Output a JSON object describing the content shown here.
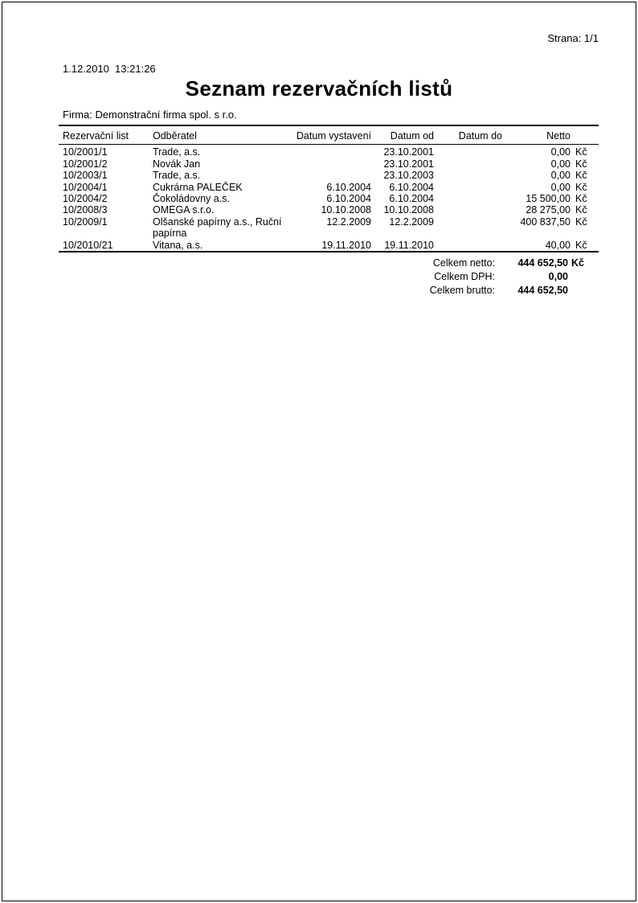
{
  "colors": {
    "text": "#000000",
    "background": "#ffffff",
    "rule": "#000000"
  },
  "header": {
    "printed_at": "1.12.2010  13:21:26",
    "company": "Firma: Demonstrační firma spol. s r.o.",
    "page_label": "Strana: 1/1",
    "title": "Seznam rezervačních listů"
  },
  "table": {
    "headers": {
      "id": "Rezervační list",
      "customer": "Odběratel",
      "issued": "Datum vystavení",
      "date_from": "Datum od",
      "date_to": "Datum do",
      "netto": "Netto"
    },
    "rows": [
      {
        "id": "10/2001/1",
        "customer": "Trade, a.s.",
        "issued": "",
        "date_from": "23.10.2001",
        "date_to": "",
        "netto": "0,00",
        "currency": "Kč"
      },
      {
        "id": "10/2001/2",
        "customer": "Novák Jan",
        "issued": "",
        "date_from": "23.10.2001",
        "date_to": "",
        "netto": "0,00",
        "currency": "Kč"
      },
      {
        "id": "10/2003/1",
        "customer": "Trade, a.s.",
        "issued": "",
        "date_from": "23.10.2003",
        "date_to": "",
        "netto": "0,00",
        "currency": "Kč"
      },
      {
        "id": "10/2004/1",
        "customer": "Cukrárna PALEČEK",
        "issued": "6.10.2004",
        "date_from": "6.10.2004",
        "date_to": "",
        "netto": "0,00",
        "currency": "Kč"
      },
      {
        "id": "10/2004/2",
        "customer": "Čokoládovny a.s.",
        "issued": "6.10.2004",
        "date_from": "6.10.2004",
        "date_to": "",
        "netto": "15 500,00",
        "currency": "Kč"
      },
      {
        "id": "10/2008/3",
        "customer": "OMEGA s.r.o.",
        "issued": "10.10.2008",
        "date_from": "10.10.2008",
        "date_to": "",
        "netto": "28 275,00",
        "currency": "Kč"
      },
      {
        "id": "10/2009/1",
        "customer": "Olšanské papírny a.s., Ruční papírna",
        "issued": "12.2.2009",
        "date_from": "12.2.2009",
        "date_to": "",
        "netto": "400 837,50",
        "currency": "Kč"
      },
      {
        "id": "10/2010/21",
        "customer": "Vitana, a.s.",
        "issued": "19.11.2010",
        "date_from": "19.11.2010",
        "date_to": "",
        "netto": "40,00",
        "currency": "Kč"
      }
    ]
  },
  "totals": [
    {
      "label": "Celkem netto:",
      "value": "444 652,50",
      "currency": "Kč"
    },
    {
      "label": "Celkem DPH:",
      "value": "0,00",
      "currency": ""
    },
    {
      "label": "Celkem brutto:",
      "value": "444 652,50",
      "currency": ""
    }
  ]
}
